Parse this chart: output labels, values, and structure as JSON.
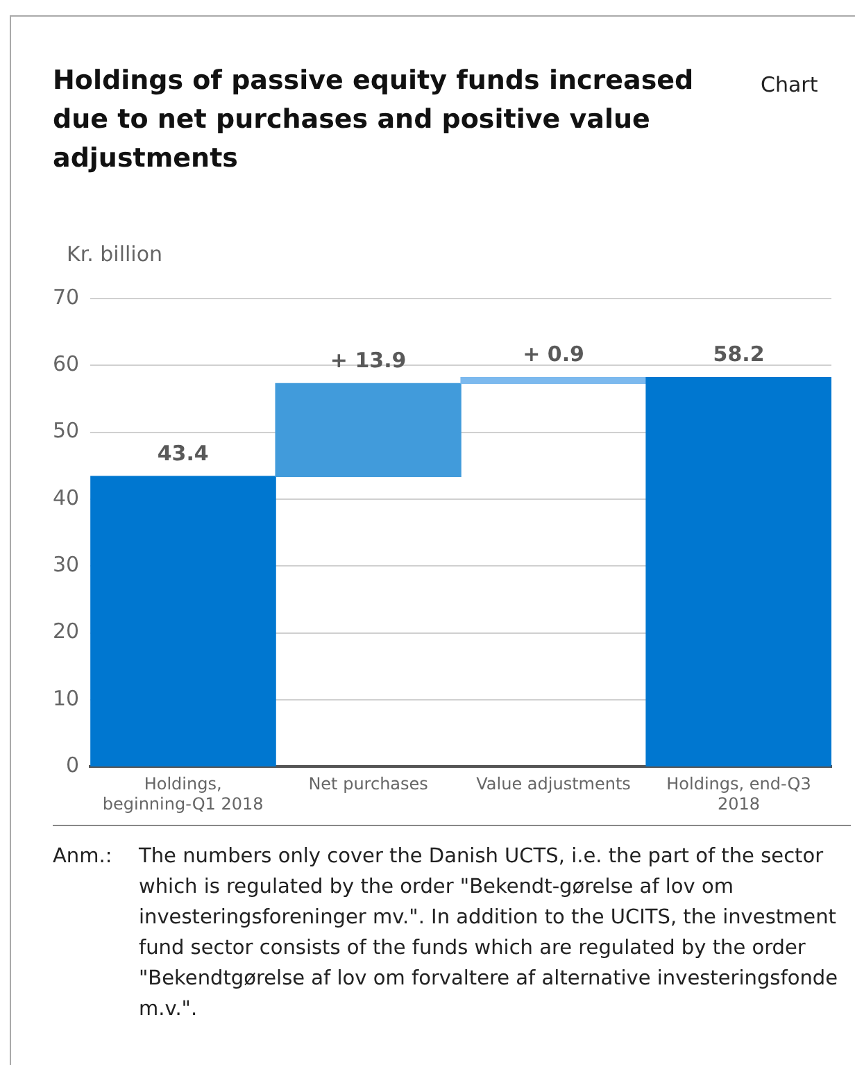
{
  "chart_data": {
    "type": "bar",
    "title": "Holdings of passive equity funds increased due to net purchases and positive value adjustments",
    "ylabel": "Kr. billion",
    "categories": [
      "Holdings, beginning-Q1 2018",
      "Net purchases",
      "Value adjustments",
      "Holdings, end-Q3 2018"
    ],
    "values": [
      43.4,
      13.9,
      0.9,
      58.2
    ],
    "base": [
      0,
      43.4,
      57.3,
      0
    ],
    "colors": [
      "#0077d0",
      "#419bdb",
      "#7cb9ee",
      "#0077d0"
    ],
    "value_labels": [
      "43.4",
      "+ 13.9",
      "+ 0.9",
      "58.2"
    ],
    "ylim": [
      0,
      70
    ],
    "yticks": [
      0,
      10,
      20,
      30,
      40,
      50,
      60,
      70
    ],
    "grid": "y",
    "legend": false,
    "annotations": [
      "Chart",
      "Anm.: The numbers only cover the Danish UCTS, i.e. the part of the sector which is regulated by the order \"Bekendt-gørelse af lov om investeringsforeninger mv.\". In addition to the UCITS, the investment fund sector consists of the funds which are regulated by the order \"Bekendtgørelse af lov om forvaltere af alternative investeringsfonde m.v.\"."
    ]
  }
}
